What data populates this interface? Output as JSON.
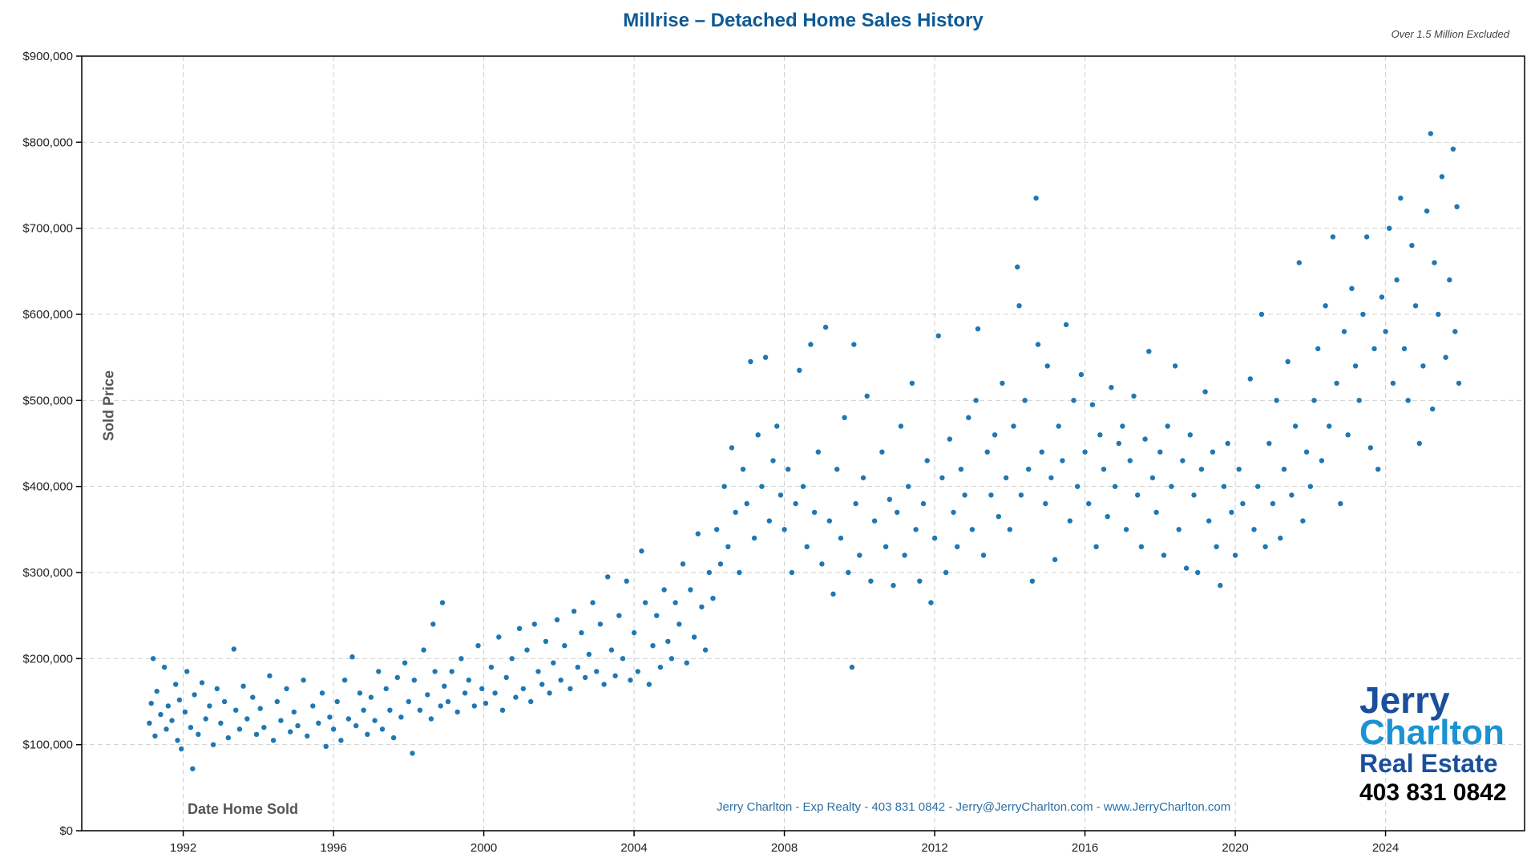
{
  "chart_data": {
    "type": "scatter",
    "title": "Millrise – Detached Home Sales History",
    "note": "Over 1.5 Million Excluded",
    "xlabel": "Date Home Sold",
    "ylabel": "Sold Price",
    "xlim": [
      1989.3,
      2027.7
    ],
    "ylim": [
      0,
      900000
    ],
    "x_ticks": [
      1992,
      1996,
      2000,
      2004,
      2008,
      2012,
      2016,
      2020,
      2024
    ],
    "x_tick_labels": [
      "1992",
      "1996",
      "2000",
      "2004",
      "2008",
      "2012",
      "2016",
      "2020",
      "2024"
    ],
    "y_ticks": [
      0,
      100000,
      200000,
      300000,
      400000,
      500000,
      600000,
      700000,
      800000,
      900000
    ],
    "y_tick_labels": [
      "$0",
      "$100,000",
      "$200,000",
      "$300,000",
      "$400,000",
      "$500,000",
      "$600,000",
      "$700,000",
      "$800,000",
      "$900,000"
    ],
    "grid": true,
    "marker_color": "#1f77b4",
    "points": [
      [
        1991.1,
        125000
      ],
      [
        1991.15,
        148000
      ],
      [
        1991.2,
        200000
      ],
      [
        1991.25,
        110000
      ],
      [
        1991.3,
        162000
      ],
      [
        1991.4,
        135000
      ],
      [
        1991.5,
        190000
      ],
      [
        1991.55,
        118000
      ],
      [
        1991.6,
        145000
      ],
      [
        1991.7,
        128000
      ],
      [
        1991.8,
        170000
      ],
      [
        1991.85,
        105000
      ],
      [
        1991.9,
        152000
      ],
      [
        1991.95,
        95000
      ],
      [
        1992.05,
        138000
      ],
      [
        1992.1,
        185000
      ],
      [
        1992.2,
        120000
      ],
      [
        1992.25,
        72000
      ],
      [
        1992.3,
        158000
      ],
      [
        1992.4,
        112000
      ],
      [
        1992.5,
        172000
      ],
      [
        1992.6,
        130000
      ],
      [
        1992.7,
        145000
      ],
      [
        1992.8,
        100000
      ],
      [
        1992.9,
        165000
      ],
      [
        1993.0,
        125000
      ],
      [
        1993.1,
        150000
      ],
      [
        1993.2,
        108000
      ],
      [
        1993.35,
        211000
      ],
      [
        1993.4,
        140000
      ],
      [
        1993.5,
        118000
      ],
      [
        1993.6,
        168000
      ],
      [
        1993.7,
        130000
      ],
      [
        1993.85,
        155000
      ],
      [
        1993.95,
        112000
      ],
      [
        1994.05,
        142000
      ],
      [
        1994.15,
        120000
      ],
      [
        1994.3,
        180000
      ],
      [
        1994.4,
        105000
      ],
      [
        1994.5,
        150000
      ],
      [
        1994.6,
        128000
      ],
      [
        1994.75,
        165000
      ],
      [
        1994.85,
        115000
      ],
      [
        1994.95,
        138000
      ],
      [
        1995.05,
        122000
      ],
      [
        1995.2,
        175000
      ],
      [
        1995.3,
        110000
      ],
      [
        1995.45,
        145000
      ],
      [
        1995.6,
        125000
      ],
      [
        1995.7,
        160000
      ],
      [
        1995.8,
        98000
      ],
      [
        1995.9,
        132000
      ],
      [
        1996.0,
        118000
      ],
      [
        1996.1,
        150000
      ],
      [
        1996.2,
        105000
      ],
      [
        1996.3,
        175000
      ],
      [
        1996.4,
        130000
      ],
      [
        1996.5,
        202000
      ],
      [
        1996.6,
        122000
      ],
      [
        1996.7,
        160000
      ],
      [
        1996.8,
        140000
      ],
      [
        1996.9,
        112000
      ],
      [
        1997.0,
        155000
      ],
      [
        1997.1,
        128000
      ],
      [
        1997.2,
        185000
      ],
      [
        1997.3,
        118000
      ],
      [
        1997.4,
        165000
      ],
      [
        1997.5,
        140000
      ],
      [
        1997.6,
        108000
      ],
      [
        1997.7,
        178000
      ],
      [
        1997.8,
        132000
      ],
      [
        1997.9,
        195000
      ],
      [
        1998.0,
        150000
      ],
      [
        1998.1,
        90000
      ],
      [
        1998.15,
        175000
      ],
      [
        1998.3,
        140000
      ],
      [
        1998.4,
        210000
      ],
      [
        1998.5,
        158000
      ],
      [
        1998.6,
        130000
      ],
      [
        1998.65,
        240000
      ],
      [
        1998.7,
        185000
      ],
      [
        1998.85,
        145000
      ],
      [
        1998.9,
        265000
      ],
      [
        1998.95,
        168000
      ],
      [
        1999.05,
        150000
      ],
      [
        1999.15,
        185000
      ],
      [
        1999.3,
        138000
      ],
      [
        1999.4,
        200000
      ],
      [
        1999.5,
        160000
      ],
      [
        1999.6,
        175000
      ],
      [
        1999.75,
        145000
      ],
      [
        1999.85,
        215000
      ],
      [
        1999.95,
        165000
      ],
      [
        2000.05,
        148000
      ],
      [
        2000.2,
        190000
      ],
      [
        2000.3,
        160000
      ],
      [
        2000.4,
        225000
      ],
      [
        2000.5,
        140000
      ],
      [
        2000.6,
        178000
      ],
      [
        2000.75,
        200000
      ],
      [
        2000.85,
        155000
      ],
      [
        2000.95,
        235000
      ],
      [
        2001.05,
        165000
      ],
      [
        2001.15,
        210000
      ],
      [
        2001.25,
        150000
      ],
      [
        2001.35,
        240000
      ],
      [
        2001.45,
        185000
      ],
      [
        2001.55,
        170000
      ],
      [
        2001.65,
        220000
      ],
      [
        2001.75,
        160000
      ],
      [
        2001.85,
        195000
      ],
      [
        2001.95,
        245000
      ],
      [
        2002.05,
        175000
      ],
      [
        2002.15,
        215000
      ],
      [
        2002.3,
        165000
      ],
      [
        2002.4,
        255000
      ],
      [
        2002.5,
        190000
      ],
      [
        2002.6,
        230000
      ],
      [
        2002.7,
        178000
      ],
      [
        2002.8,
        205000
      ],
      [
        2002.9,
        265000
      ],
      [
        2003.0,
        185000
      ],
      [
        2003.1,
        240000
      ],
      [
        2003.2,
        170000
      ],
      [
        2003.3,
        295000
      ],
      [
        2003.4,
        210000
      ],
      [
        2003.5,
        180000
      ],
      [
        2003.6,
        250000
      ],
      [
        2003.7,
        200000
      ],
      [
        2003.8,
        290000
      ],
      [
        2003.9,
        175000
      ],
      [
        2004.0,
        230000
      ],
      [
        2004.1,
        185000
      ],
      [
        2004.2,
        325000
      ],
      [
        2004.3,
        265000
      ],
      [
        2004.4,
        170000
      ],
      [
        2004.5,
        215000
      ],
      [
        2004.6,
        250000
      ],
      [
        2004.7,
        190000
      ],
      [
        2004.8,
        280000
      ],
      [
        2004.9,
        220000
      ],
      [
        2005.0,
        200000
      ],
      [
        2005.1,
        265000
      ],
      [
        2005.2,
        240000
      ],
      [
        2005.3,
        310000
      ],
      [
        2005.4,
        195000
      ],
      [
        2005.5,
        280000
      ],
      [
        2005.6,
        225000
      ],
      [
        2005.7,
        345000
      ],
      [
        2005.8,
        260000
      ],
      [
        2005.9,
        210000
      ],
      [
        2006.0,
        300000
      ],
      [
        2006.1,
        270000
      ],
      [
        2006.2,
        350000
      ],
      [
        2006.3,
        310000
      ],
      [
        2006.4,
        400000
      ],
      [
        2006.5,
        330000
      ],
      [
        2006.6,
        445000
      ],
      [
        2006.7,
        370000
      ],
      [
        2006.8,
        300000
      ],
      [
        2006.9,
        420000
      ],
      [
        2007.0,
        380000
      ],
      [
        2007.1,
        545000
      ],
      [
        2007.2,
        340000
      ],
      [
        2007.3,
        460000
      ],
      [
        2007.4,
        400000
      ],
      [
        2007.5,
        550000
      ],
      [
        2007.6,
        360000
      ],
      [
        2007.7,
        430000
      ],
      [
        2007.8,
        470000
      ],
      [
        2007.9,
        390000
      ],
      [
        2008.0,
        350000
      ],
      [
        2008.1,
        420000
      ],
      [
        2008.2,
        300000
      ],
      [
        2008.3,
        380000
      ],
      [
        2008.4,
        535000
      ],
      [
        2008.5,
        400000
      ],
      [
        2008.6,
        330000
      ],
      [
        2008.7,
        565000
      ],
      [
        2008.8,
        370000
      ],
      [
        2008.9,
        440000
      ],
      [
        2009.0,
        310000
      ],
      [
        2009.1,
        585000
      ],
      [
        2009.2,
        360000
      ],
      [
        2009.3,
        275000
      ],
      [
        2009.4,
        420000
      ],
      [
        2009.5,
        340000
      ],
      [
        2009.6,
        480000
      ],
      [
        2009.7,
        300000
      ],
      [
        2009.8,
        190000
      ],
      [
        2009.85,
        565000
      ],
      [
        2009.9,
        380000
      ],
      [
        2010.0,
        320000
      ],
      [
        2010.1,
        410000
      ],
      [
        2010.2,
        505000
      ],
      [
        2010.3,
        290000
      ],
      [
        2010.4,
        360000
      ],
      [
        2010.6,
        440000
      ],
      [
        2010.7,
        330000
      ],
      [
        2010.8,
        385000
      ],
      [
        2010.9,
        285000
      ],
      [
        2011.0,
        370000
      ],
      [
        2011.1,
        470000
      ],
      [
        2011.2,
        320000
      ],
      [
        2011.3,
        400000
      ],
      [
        2011.4,
        520000
      ],
      [
        2011.5,
        350000
      ],
      [
        2011.6,
        290000
      ],
      [
        2011.7,
        380000
      ],
      [
        2011.8,
        430000
      ],
      [
        2011.9,
        265000
      ],
      [
        2012.0,
        340000
      ],
      [
        2012.1,
        575000
      ],
      [
        2012.2,
        410000
      ],
      [
        2012.3,
        300000
      ],
      [
        2012.4,
        455000
      ],
      [
        2012.5,
        370000
      ],
      [
        2012.6,
        330000
      ],
      [
        2012.7,
        420000
      ],
      [
        2012.8,
        390000
      ],
      [
        2012.9,
        480000
      ],
      [
        2013.0,
        350000
      ],
      [
        2013.1,
        500000
      ],
      [
        2013.15,
        583000
      ],
      [
        2013.3,
        320000
      ],
      [
        2013.4,
        440000
      ],
      [
        2013.5,
        390000
      ],
      [
        2013.6,
        460000
      ],
      [
        2013.7,
        365000
      ],
      [
        2013.8,
        520000
      ],
      [
        2013.9,
        410000
      ],
      [
        2014.0,
        350000
      ],
      [
        2014.1,
        470000
      ],
      [
        2014.2,
        655000
      ],
      [
        2014.25,
        610000
      ],
      [
        2014.3,
        390000
      ],
      [
        2014.4,
        500000
      ],
      [
        2014.5,
        420000
      ],
      [
        2014.6,
        290000
      ],
      [
        2014.7,
        735000
      ],
      [
        2014.75,
        565000
      ],
      [
        2014.85,
        440000
      ],
      [
        2014.95,
        380000
      ],
      [
        2015.0,
        540000
      ],
      [
        2015.1,
        410000
      ],
      [
        2015.2,
        315000
      ],
      [
        2015.3,
        470000
      ],
      [
        2015.4,
        430000
      ],
      [
        2015.5,
        588000
      ],
      [
        2015.6,
        360000
      ],
      [
        2015.7,
        500000
      ],
      [
        2015.8,
        400000
      ],
      [
        2015.9,
        530000
      ],
      [
        2016.0,
        440000
      ],
      [
        2016.1,
        380000
      ],
      [
        2016.2,
        495000
      ],
      [
        2016.3,
        330000
      ],
      [
        2016.4,
        460000
      ],
      [
        2016.5,
        420000
      ],
      [
        2016.6,
        365000
      ],
      [
        2016.7,
        515000
      ],
      [
        2016.8,
        400000
      ],
      [
        2016.9,
        450000
      ],
      [
        2017.0,
        470000
      ],
      [
        2017.1,
        350000
      ],
      [
        2017.2,
        430000
      ],
      [
        2017.3,
        505000
      ],
      [
        2017.4,
        390000
      ],
      [
        2017.5,
        330000
      ],
      [
        2017.6,
        455000
      ],
      [
        2017.7,
        557000
      ],
      [
        2017.8,
        410000
      ],
      [
        2017.9,
        370000
      ],
      [
        2018.0,
        440000
      ],
      [
        2018.1,
        320000
      ],
      [
        2018.2,
        470000
      ],
      [
        2018.3,
        400000
      ],
      [
        2018.4,
        540000
      ],
      [
        2018.5,
        350000
      ],
      [
        2018.6,
        430000
      ],
      [
        2018.7,
        305000
      ],
      [
        2018.8,
        460000
      ],
      [
        2018.9,
        390000
      ],
      [
        2019.0,
        300000
      ],
      [
        2019.1,
        420000
      ],
      [
        2019.2,
        510000
      ],
      [
        2019.3,
        360000
      ],
      [
        2019.4,
        440000
      ],
      [
        2019.5,
        330000
      ],
      [
        2019.6,
        285000
      ],
      [
        2019.7,
        400000
      ],
      [
        2019.8,
        450000
      ],
      [
        2019.9,
        370000
      ],
      [
        2020.0,
        320000
      ],
      [
        2020.1,
        420000
      ],
      [
        2020.2,
        380000
      ],
      [
        2020.4,
        525000
      ],
      [
        2020.5,
        350000
      ],
      [
        2020.6,
        400000
      ],
      [
        2020.7,
        600000
      ],
      [
        2020.8,
        330000
      ],
      [
        2020.9,
        450000
      ],
      [
        2021.0,
        380000
      ],
      [
        2021.1,
        500000
      ],
      [
        2021.2,
        340000
      ],
      [
        2021.3,
        420000
      ],
      [
        2021.4,
        545000
      ],
      [
        2021.5,
        390000
      ],
      [
        2021.6,
        470000
      ],
      [
        2021.7,
        660000
      ],
      [
        2021.8,
        360000
      ],
      [
        2021.9,
        440000
      ],
      [
        2022.0,
        400000
      ],
      [
        2022.1,
        500000
      ],
      [
        2022.2,
        560000
      ],
      [
        2022.3,
        430000
      ],
      [
        2022.4,
        610000
      ],
      [
        2022.5,
        470000
      ],
      [
        2022.6,
        690000
      ],
      [
        2022.7,
        520000
      ],
      [
        2022.8,
        380000
      ],
      [
        2022.9,
        580000
      ],
      [
        2023.0,
        460000
      ],
      [
        2023.1,
        630000
      ],
      [
        2023.2,
        540000
      ],
      [
        2023.3,
        500000
      ],
      [
        2023.4,
        600000
      ],
      [
        2023.5,
        690000
      ],
      [
        2023.6,
        445000
      ],
      [
        2023.7,
        560000
      ],
      [
        2023.8,
        420000
      ],
      [
        2023.9,
        620000
      ],
      [
        2024.0,
        580000
      ],
      [
        2024.1,
        700000
      ],
      [
        2024.2,
        520000
      ],
      [
        2024.3,
        640000
      ],
      [
        2024.4,
        735000
      ],
      [
        2024.5,
        560000
      ],
      [
        2024.6,
        500000
      ],
      [
        2024.7,
        680000
      ],
      [
        2024.8,
        610000
      ],
      [
        2024.9,
        450000
      ],
      [
        2025.0,
        540000
      ],
      [
        2025.1,
        720000
      ],
      [
        2025.2,
        810000
      ],
      [
        2025.25,
        490000
      ],
      [
        2025.3,
        660000
      ],
      [
        2025.4,
        600000
      ],
      [
        2025.5,
        760000
      ],
      [
        2025.6,
        550000
      ],
      [
        2025.7,
        640000
      ],
      [
        2025.8,
        792000
      ],
      [
        2025.85,
        580000
      ],
      [
        2025.9,
        725000
      ],
      [
        2025.95,
        520000
      ]
    ]
  },
  "footer": "Jerry Charlton - Exp Realty - 403 831 0842 - Jerry@JerryCharlton.com - www.JerryCharlton.com",
  "logo": {
    "line1": "Jerry",
    "line2": "Charlton",
    "line3": "Real Estate",
    "phone": "403 831 0842"
  }
}
